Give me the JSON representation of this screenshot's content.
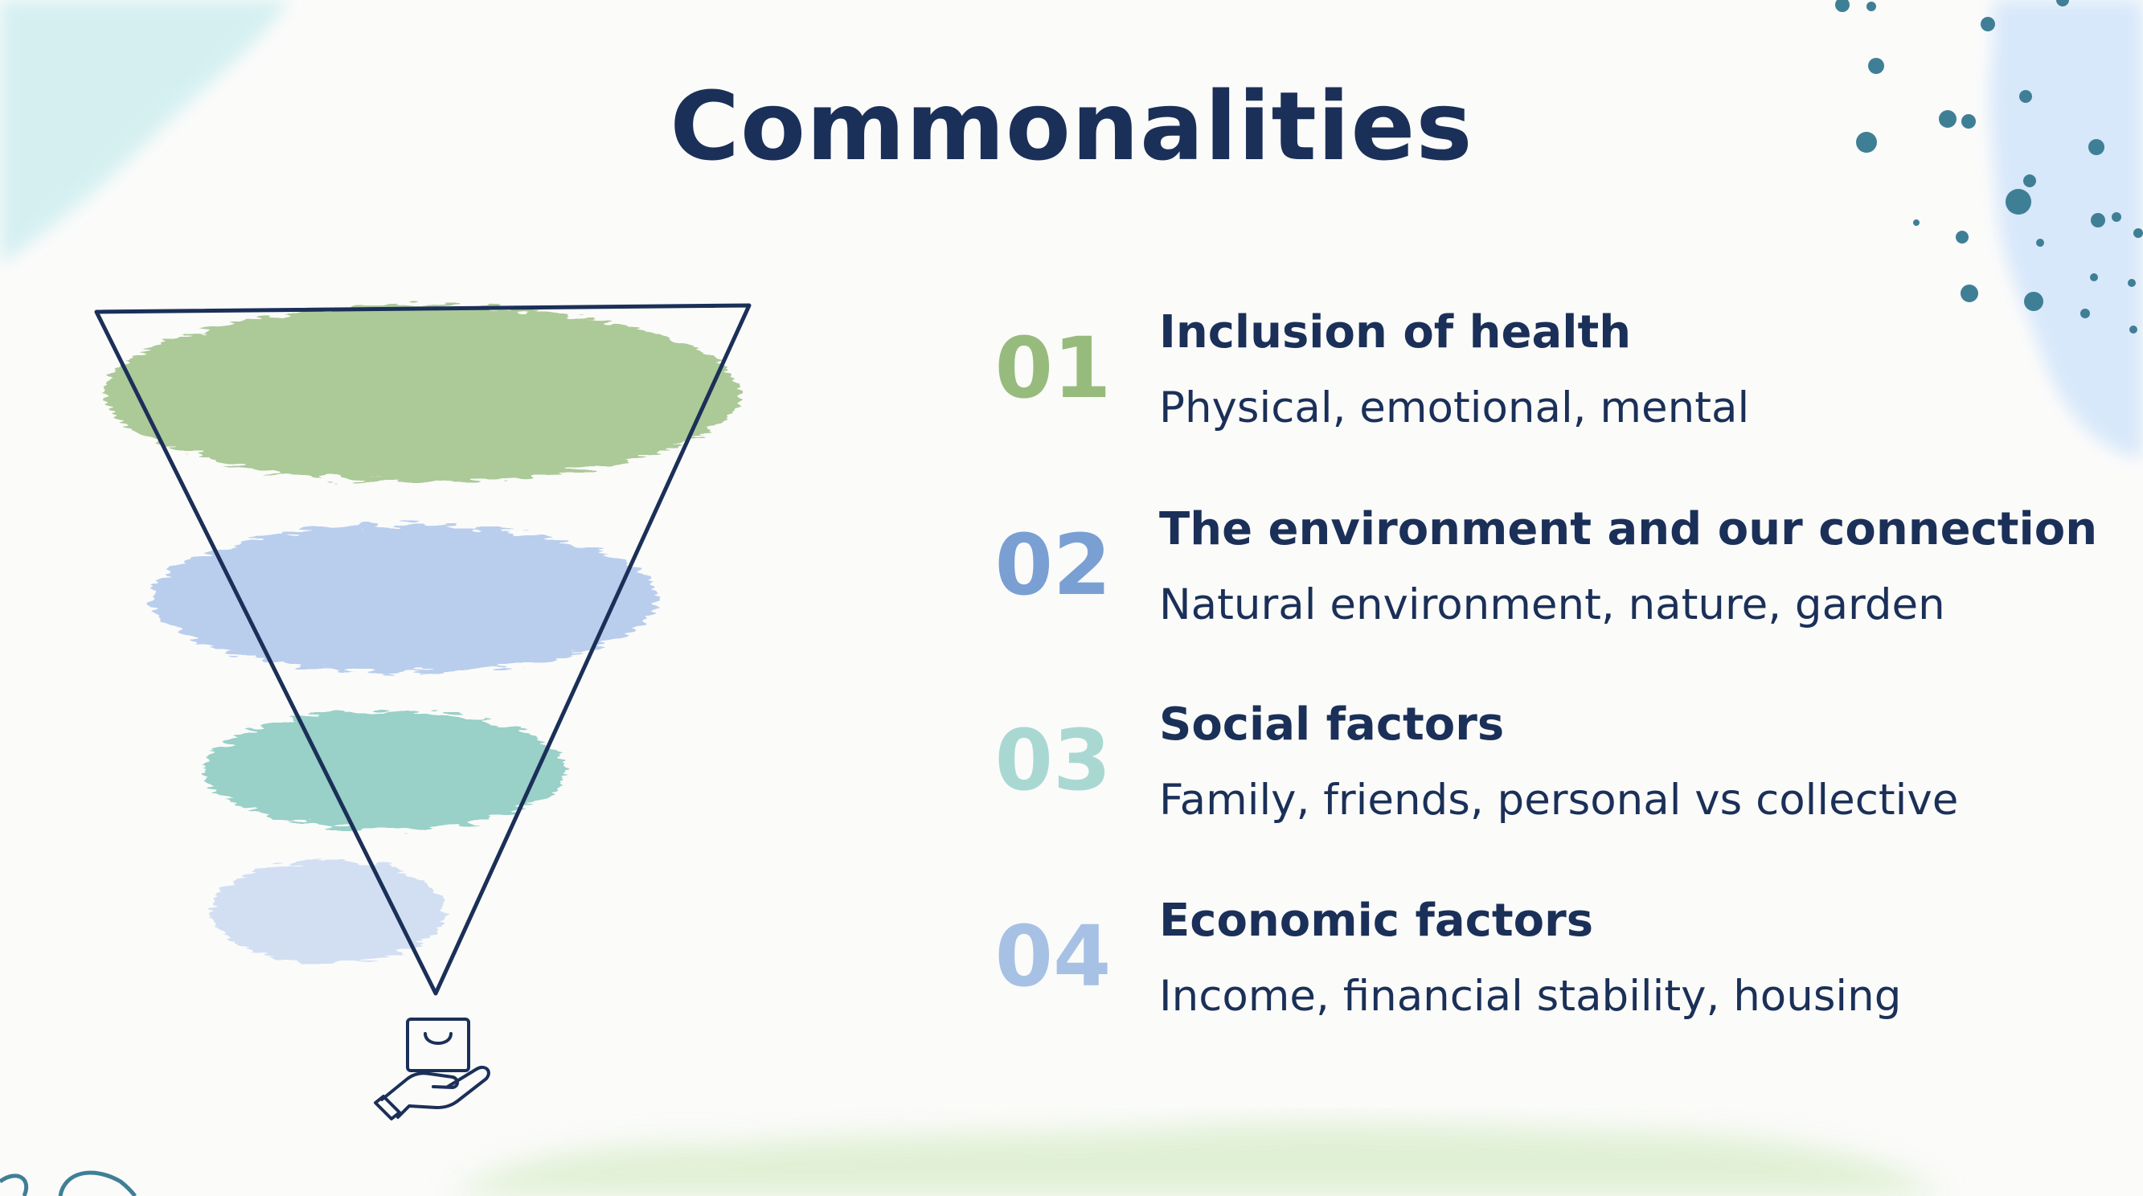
{
  "title": "Commonalities",
  "items": [
    {
      "number": "01",
      "title": "Inclusion of health",
      "description": "Physical, emotional, mental",
      "color": "#97bb7c"
    },
    {
      "number": "02",
      "title": "The environment and our connection",
      "description": "Natural environment, nature, garden",
      "color": "#7a9fd3"
    },
    {
      "number": "03",
      "title": "Social factors",
      "description": "Family, friends, personal vs collective",
      "color": "#a9d8d2"
    },
    {
      "number": "04",
      "title": "Economic factors",
      "description": "Income, financial stability, housing",
      "color": "#a7c1e4"
    }
  ],
  "funnel": {
    "layer_colors": [
      "#9fc187",
      "#a9c4ea",
      "#88c9bf",
      "#c8d9f1"
    ],
    "outline_color": "#1b3058"
  },
  "icons": {
    "funnel_bottom": "hand-holding-shopping-bag-icon"
  },
  "colors": {
    "title": "#1b3058",
    "text": "#1b3058",
    "dots": "#3f7f96"
  }
}
